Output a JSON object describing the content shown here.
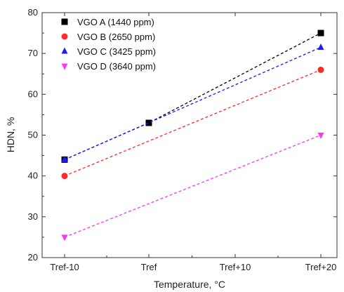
{
  "chart_data": {
    "type": "scatter",
    "title": "",
    "xlabel": "Temperature, °C",
    "ylabel": "HDN, %",
    "categories": [
      "Tref-10",
      "Tref",
      "Tref+10",
      "Tref+20"
    ],
    "ylim": [
      20,
      80
    ],
    "yticks": [
      20,
      30,
      40,
      50,
      60,
      70,
      80
    ],
    "grid": false,
    "legend_position": "top-left",
    "series": [
      {
        "name": "VGO A (1440 ppm)",
        "color": "#000000",
        "marker": "square",
        "x": [
          "Tref-10",
          "Tref",
          "Tref+20"
        ],
        "values": [
          44,
          53,
          75
        ]
      },
      {
        "name": "VGO B (2650 ppm)",
        "color": "#ff2a2a",
        "marker": "circle",
        "x": [
          "Tref-10",
          "Tref+20"
        ],
        "values": [
          40,
          66
        ]
      },
      {
        "name": "VGO C (3425 ppm)",
        "color": "#1a1aff",
        "marker": "triangle-up",
        "x": [
          "Tref-10",
          "Tref+20"
        ],
        "values": [
          44,
          71.5
        ]
      },
      {
        "name": "VGO D (3640 ppm)",
        "color": "#ff33ff",
        "marker": "triangle-down",
        "x": [
          "Tref-10",
          "Tref+20"
        ],
        "values": [
          25,
          50
        ]
      }
    ]
  }
}
